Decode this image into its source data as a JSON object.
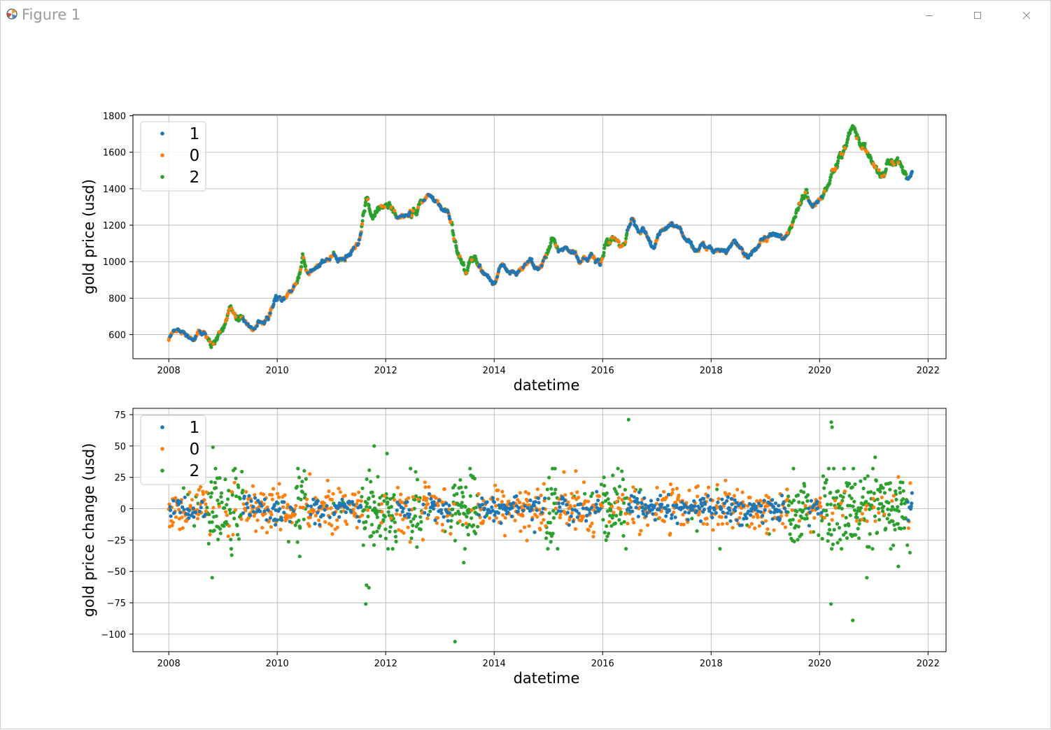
{
  "window": {
    "title": "Figure 1",
    "icons": [
      "matplotlib-icon",
      "minimize-icon",
      "maximize-icon",
      "close-icon"
    ]
  },
  "colors": {
    "1": "#1f77b4",
    "0": "#ff7f0e",
    "2": "#2ca02c",
    "grid": "#b0b0b0",
    "axis": "#000000"
  },
  "chart_data": [
    {
      "type": "scatter",
      "xlabel": "datetime",
      "ylabel": "gold price (usd)",
      "xlim": [
        "2007-05-05",
        "2022-05-02"
      ],
      "ylim": [
        468,
        1806
      ],
      "x_ticks": [
        "2008",
        "2010",
        "2012",
        "2014",
        "2016",
        "2018",
        "2020",
        "2022"
      ],
      "y_ticks": [
        600,
        800,
        1000,
        1200,
        1400,
        1600,
        1800
      ],
      "y_tick_labels": [
        "600",
        "800",
        "1000",
        "1200",
        "1400",
        "1600",
        "1800"
      ],
      "grid": true,
      "legend": {
        "position": "upper-left",
        "entries": [
          "1",
          "0",
          "2"
        ]
      },
      "price_path": [
        [
          "2008-01-01",
          575
        ],
        [
          "2008-03-01",
          640
        ],
        [
          "2008-06-01",
          580
        ],
        [
          "2008-09-01",
          600
        ],
        [
          "2008-10-15",
          540
        ],
        [
          "2008-12-15",
          600
        ],
        [
          "2009-02-20",
          780
        ],
        [
          "2009-04-15",
          690
        ],
        [
          "2009-08-01",
          660
        ],
        [
          "2009-11-01",
          700
        ],
        [
          "2009-12-20",
          790
        ],
        [
          "2010-03-01",
          800
        ],
        [
          "2010-06-01",
          920
        ],
        [
          "2010-06-20",
          1020
        ],
        [
          "2010-08-01",
          910
        ],
        [
          "2010-11-01",
          1000
        ],
        [
          "2011-01-01",
          1060
        ],
        [
          "2011-02-15",
          1000
        ],
        [
          "2011-05-01",
          1040
        ],
        [
          "2011-07-01",
          1080
        ],
        [
          "2011-08-20",
          1300
        ],
        [
          "2011-09-20",
          1230
        ],
        [
          "2012-02-01",
          1310
        ],
        [
          "2012-05-01",
          1230
        ],
        [
          "2012-10-01",
          1370
        ],
        [
          "2013-01-01",
          1290
        ],
        [
          "2013-03-01",
          1250
        ],
        [
          "2013-04-15",
          1100
        ],
        [
          "2013-06-25",
          950
        ],
        [
          "2013-08-25",
          1010
        ],
        [
          "2013-12-20",
          880
        ],
        [
          "2014-03-01",
          970
        ],
        [
          "2014-06-01",
          930
        ],
        [
          "2014-09-01",
          990
        ],
        [
          "2014-11-15",
          960
        ],
        [
          "2015-01-20",
          1120
        ],
        [
          "2015-03-15",
          1080
        ],
        [
          "2015-07-01",
          1050
        ],
        [
          "2015-08-01",
          990
        ],
        [
          "2015-10-15",
          1040
        ],
        [
          "2015-12-15",
          980
        ],
        [
          "2016-03-01",
          1130
        ],
        [
          "2016-06-01",
          1100
        ],
        [
          "2016-07-15",
          1220
        ],
        [
          "2016-10-01",
          1180
        ],
        [
          "2016-12-15",
          1080
        ],
        [
          "2017-02-01",
          1180
        ],
        [
          "2017-04-15",
          1200
        ],
        [
          "2017-07-01",
          1110
        ],
        [
          "2017-09-01",
          1080
        ],
        [
          "2017-12-01",
          1090
        ],
        [
          "2018-01-25",
          1070
        ],
        [
          "2018-04-01",
          1080
        ],
        [
          "2018-06-01",
          1100
        ],
        [
          "2018-08-15",
          1030
        ],
        [
          "2018-10-15",
          1050
        ],
        [
          "2019-02-01",
          1160
        ],
        [
          "2019-05-01",
          1140
        ],
        [
          "2019-06-15",
          1200
        ],
        [
          "2019-08-15",
          1330
        ],
        [
          "2019-10-01",
          1380
        ],
        [
          "2019-12-01",
          1320
        ],
        [
          "2020-03-01",
          1420
        ],
        [
          "2020-05-01",
          1550
        ],
        [
          "2020-07-01",
          1640
        ],
        [
          "2020-08-10",
          1740
        ],
        [
          "2020-11-01",
          1620
        ],
        [
          "2021-01-01",
          1520
        ],
        [
          "2021-03-25",
          1440
        ],
        [
          "2021-06-01",
          1560
        ],
        [
          "2021-08-01",
          1480
        ],
        [
          "2021-09-15",
          1510
        ]
      ],
      "regime_segments": [
        [
          "2008-01-01",
          "2008-09-15",
          "0"
        ],
        [
          "2008-09-15",
          "2009-05-15",
          "2"
        ],
        [
          "2009-05-15",
          "2010-05-01",
          "0"
        ],
        [
          "2010-05-01",
          "2010-07-15",
          "2"
        ],
        [
          "2010-07-15",
          "2011-07-20",
          "0"
        ],
        [
          "2011-07-20",
          "2012-03-15",
          "2"
        ],
        [
          "2012-03-15",
          "2012-06-15",
          "0"
        ],
        [
          "2012-06-15",
          "2012-09-01",
          "2"
        ],
        [
          "2012-09-01",
          "2013-03-15",
          "0"
        ],
        [
          "2013-03-15",
          "2013-09-15",
          "2"
        ],
        [
          "2013-09-15",
          "2014-12-15",
          "0"
        ],
        [
          "2014-12-15",
          "2015-03-01",
          "2"
        ],
        [
          "2015-03-01",
          "2015-12-20",
          "0"
        ],
        [
          "2015-12-20",
          "2016-06-15",
          "2"
        ],
        [
          "2016-06-15",
          "2019-06-01",
          "0"
        ],
        [
          "2019-06-01",
          "2019-10-15",
          "2"
        ],
        [
          "2019-10-15",
          "2020-01-15",
          "0"
        ],
        [
          "2020-01-15",
          "2021-08-15",
          "2"
        ],
        [
          "2021-08-15",
          "2021-09-20",
          "0"
        ]
      ]
    },
    {
      "type": "scatter",
      "xlabel": "datetime",
      "ylabel": "gold price change (usd)",
      "xlim": [
        "2007-05-05",
        "2022-05-02"
      ],
      "ylim": [
        -114,
        80
      ],
      "x_ticks": [
        "2008",
        "2010",
        "2012",
        "2014",
        "2016",
        "2018",
        "2020",
        "2022"
      ],
      "y_ticks": [
        -100,
        -75,
        -50,
        -25,
        0,
        25,
        50,
        75
      ],
      "y_tick_labels": [
        "−100",
        "−75",
        "−50",
        "−25",
        "0",
        "25",
        "50",
        "75"
      ],
      "grid": true,
      "legend": {
        "position": "upper-left",
        "entries": [
          "1",
          "0",
          "2"
        ]
      },
      "outliers": [
        [
          "2008-10-20",
          -55,
          "2"
        ],
        [
          "2008-10-25",
          49,
          "2"
        ],
        [
          "2009-03-01",
          -37,
          "2"
        ],
        [
          "2010-06-01",
          -38,
          "2"
        ],
        [
          "2011-08-20",
          -76,
          "2"
        ],
        [
          "2011-08-25",
          -61,
          "2"
        ],
        [
          "2011-09-10",
          -63,
          "2"
        ],
        [
          "2011-10-15",
          50,
          "2"
        ],
        [
          "2012-01-10",
          44,
          "2"
        ],
        [
          "2013-04-12",
          -106,
          "2"
        ],
        [
          "2013-06-10",
          -43,
          "2"
        ],
        [
          "2016-06-24",
          71,
          "2"
        ],
        [
          "2020-03-18",
          -76,
          "2"
        ],
        [
          "2020-03-20",
          69,
          "2"
        ],
        [
          "2020-03-25",
          65,
          "2"
        ],
        [
          "2020-08-12",
          -89,
          "2"
        ],
        [
          "2020-11-15",
          -55,
          "2"
        ],
        [
          "2021-01-10",
          41,
          "2"
        ],
        [
          "2021-06-15",
          -46,
          "2"
        ],
        [
          "2021-09-01",
          -35,
          "2"
        ]
      ]
    }
  ]
}
